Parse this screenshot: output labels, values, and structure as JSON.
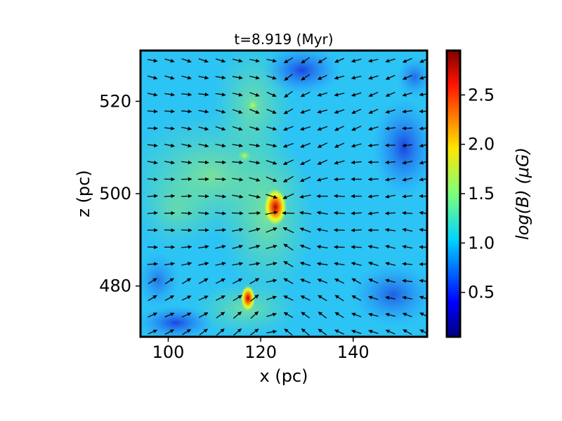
{
  "chart_data": {
    "type": "heatmap",
    "title": "t=8.919 (Myr)",
    "xlabel": "x (pc)",
    "ylabel": "z (pc)",
    "xlim": [
      94,
      156
    ],
    "ylim": [
      469,
      531
    ],
    "xticks": [
      100,
      120,
      140
    ],
    "yticks": [
      480,
      500,
      520
    ],
    "colorbar": {
      "label": "log(B) (μG)",
      "range": [
        0.05,
        2.95
      ],
      "ticks": [
        0.5,
        1.0,
        1.5,
        2.0,
        2.5
      ],
      "colormap": "jet"
    },
    "overlay": "magnetic field direction vectors (black arrows)",
    "frame_color": "#000000"
  }
}
